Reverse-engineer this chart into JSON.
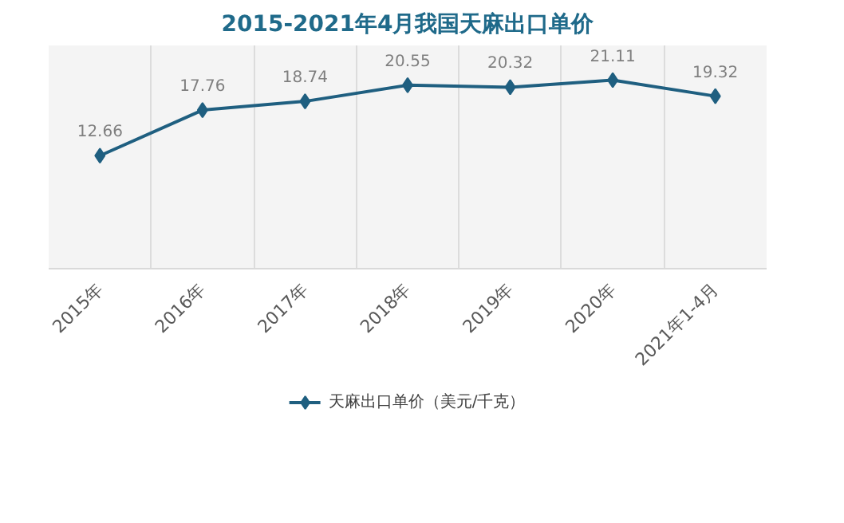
{
  "chart_data": {
    "type": "line",
    "title": "2015-2021年4月我国天麻出口单价",
    "categories": [
      "2015年",
      "2016年",
      "2017年",
      "2018年",
      "2019年",
      "2020年",
      "2021年1-4月"
    ],
    "series": [
      {
        "name": "天麻出口单价（美元/千克）",
        "color": "#1f5f80",
        "values": [
          12.66,
          17.76,
          18.74,
          20.55,
          20.32,
          21.11,
          19.32
        ]
      }
    ],
    "ylim": [
      0,
      25
    ],
    "tick_labels": "x",
    "data_labels": true,
    "grid": "x",
    "legend": "bottom",
    "marker": "diamond",
    "line_style": "solid"
  }
}
